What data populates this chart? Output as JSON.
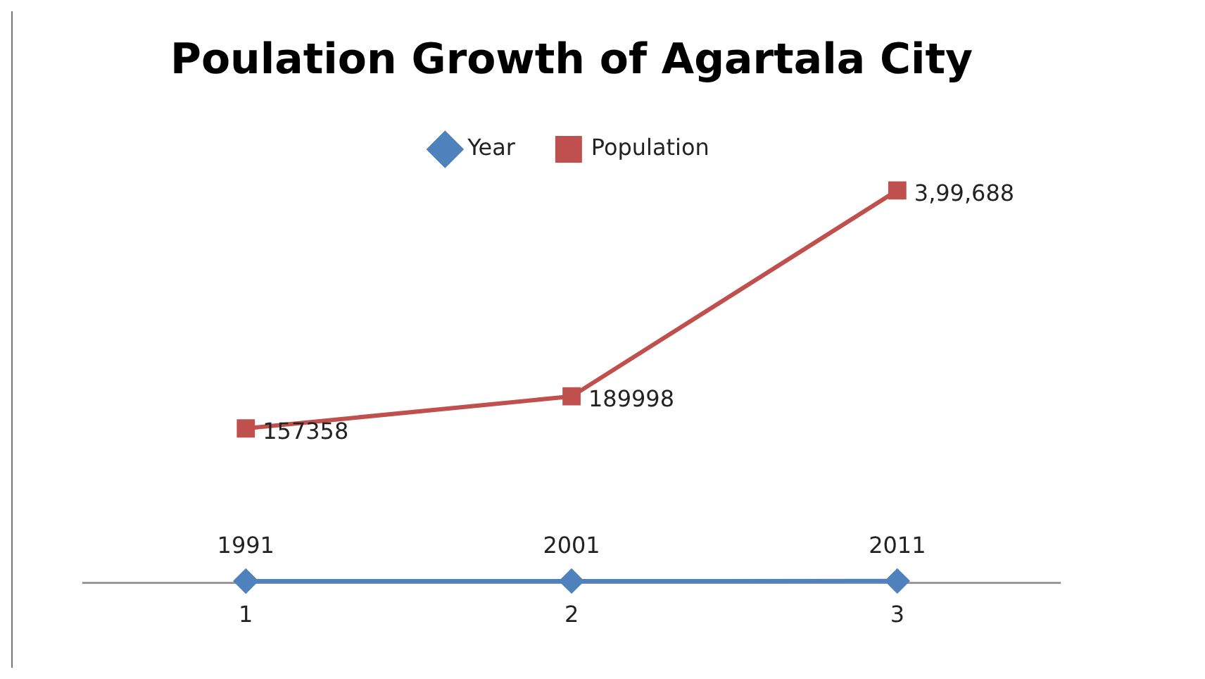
{
  "chart_data": {
    "type": "line",
    "title": "Poulation Growth of Agartala City",
    "categories": [
      "1",
      "2",
      "3"
    ],
    "legend": "top",
    "grid": false,
    "series": [
      {
        "name": "Year",
        "color": "#4f81bd",
        "values": [
          1991,
          2001,
          2011
        ],
        "marker": "diamond",
        "value_labels": [
          "1991",
          "2001",
          "2011"
        ]
      },
      {
        "name": "Population",
        "color": "#c0504d",
        "values": [
          157358,
          189998,
          399688
        ],
        "marker": "square",
        "value_labels": [
          "157358",
          "189998",
          "3,99,688"
        ]
      }
    ]
  }
}
